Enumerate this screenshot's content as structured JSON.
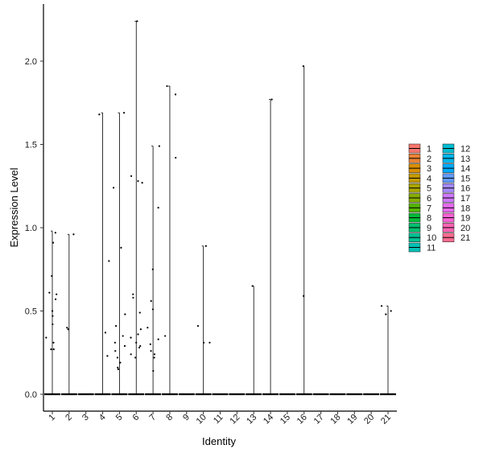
{
  "chart_data": {
    "type": "violin",
    "xlabel": "Identity",
    "ylabel": "Expression Level",
    "categories": [
      "1",
      "2",
      "3",
      "4",
      "5",
      "6",
      "7",
      "8",
      "9",
      "10",
      "11",
      "12",
      "13",
      "14",
      "15",
      "16",
      "17",
      "18",
      "19",
      "20",
      "21"
    ],
    "ylim": [
      -0.1,
      2.3
    ],
    "yticks": [
      0.0,
      0.5,
      1.0,
      1.5,
      2.0
    ],
    "ytick_labels": [
      "0.0",
      "0.5",
      "1.0",
      "1.5",
      "2.0"
    ],
    "grid": false,
    "legend_position": "right",
    "legend_columns": 2,
    "colors": [
      "#F8766D",
      "#EB8335",
      "#DA8F00",
      "#C49A00",
      "#A9A400",
      "#86AC00",
      "#53B400",
      "#00BA38",
      "#00BE6D",
      "#00C094",
      "#00C0B5",
      "#00BDD2",
      "#00B6EB",
      "#00ABFD",
      "#619CFF",
      "#A58AFF",
      "#CF78FF",
      "#EA6AF1",
      "#FA62D5",
      "#FF63B4",
      "#FF6C91"
    ],
    "max_values": [
      0.98,
      0.96,
      0.0,
      1.69,
      1.69,
      2.24,
      1.49,
      1.85,
      0.0,
      0.89,
      0.0,
      0.0,
      0.65,
      1.77,
      0.0,
      1.97,
      0.0,
      0.0,
      0.0,
      0.0,
      0.53
    ],
    "points": [
      {
        "group": "1",
        "y": 0.97
      },
      {
        "group": "1",
        "y": 0.91
      },
      {
        "group": "1",
        "y": 0.71
      },
      {
        "group": "1",
        "y": 0.61
      },
      {
        "group": "1",
        "y": 0.6
      },
      {
        "group": "1",
        "y": 0.57
      },
      {
        "group": "1",
        "y": 0.5
      },
      {
        "group": "1",
        "y": 0.47
      },
      {
        "group": "1",
        "y": 0.42
      },
      {
        "group": "1",
        "y": 0.34
      },
      {
        "group": "1",
        "y": 0.31
      },
      {
        "group": "1",
        "y": 0.27
      },
      {
        "group": "1",
        "y": 0.27
      },
      {
        "group": "2",
        "y": 0.96
      },
      {
        "group": "2",
        "y": 0.4
      },
      {
        "group": "2",
        "y": 0.39
      },
      {
        "group": "4",
        "y": 1.68
      },
      {
        "group": "4",
        "y": 0.8
      },
      {
        "group": "4",
        "y": 0.37
      },
      {
        "group": "4",
        "y": 0.23
      },
      {
        "group": "5",
        "y": 1.69
      },
      {
        "group": "5",
        "y": 1.24
      },
      {
        "group": "5",
        "y": 0.88
      },
      {
        "group": "5",
        "y": 0.48
      },
      {
        "group": "5",
        "y": 0.41
      },
      {
        "group": "5",
        "y": 0.35
      },
      {
        "group": "5",
        "y": 0.31
      },
      {
        "group": "5",
        "y": 0.29
      },
      {
        "group": "5",
        "y": 0.26
      },
      {
        "group": "5",
        "y": 0.22
      },
      {
        "group": "5",
        "y": 0.19
      },
      {
        "group": "5",
        "y": 0.16
      },
      {
        "group": "5",
        "y": 0.15
      },
      {
        "group": "6",
        "y": 2.24
      },
      {
        "group": "6",
        "y": 1.31
      },
      {
        "group": "6",
        "y": 1.28
      },
      {
        "group": "6",
        "y": 1.27
      },
      {
        "group": "6",
        "y": 0.6
      },
      {
        "group": "6",
        "y": 0.58
      },
      {
        "group": "6",
        "y": 0.49
      },
      {
        "group": "6",
        "y": 0.39
      },
      {
        "group": "6",
        "y": 0.36
      },
      {
        "group": "6",
        "y": 0.34
      },
      {
        "group": "6",
        "y": 0.31
      },
      {
        "group": "6",
        "y": 0.29
      },
      {
        "group": "6",
        "y": 0.28
      },
      {
        "group": "6",
        "y": 0.24
      },
      {
        "group": "6",
        "y": 0.22
      },
      {
        "group": "7",
        "y": 1.49
      },
      {
        "group": "7",
        "y": 1.12
      },
      {
        "group": "7",
        "y": 0.75
      },
      {
        "group": "7",
        "y": 0.56
      },
      {
        "group": "7",
        "y": 0.51
      },
      {
        "group": "7",
        "y": 0.4
      },
      {
        "group": "7",
        "y": 0.33
      },
      {
        "group": "7",
        "y": 0.3
      },
      {
        "group": "7",
        "y": 0.26
      },
      {
        "group": "7",
        "y": 0.24
      },
      {
        "group": "7",
        "y": 0.22
      },
      {
        "group": "7",
        "y": 0.14
      },
      {
        "group": "8",
        "y": 1.85
      },
      {
        "group": "8",
        "y": 1.8
      },
      {
        "group": "8",
        "y": 1.42
      },
      {
        "group": "8",
        "y": 0.35
      },
      {
        "group": "10",
        "y": 0.89
      },
      {
        "group": "10",
        "y": 0.41
      },
      {
        "group": "10",
        "y": 0.31
      },
      {
        "group": "10",
        "y": 0.31
      },
      {
        "group": "13",
        "y": 0.65
      },
      {
        "group": "14",
        "y": 1.77
      },
      {
        "group": "16",
        "y": 1.97
      },
      {
        "group": "16",
        "y": 0.59
      },
      {
        "group": "21",
        "y": 0.53
      },
      {
        "group": "21",
        "y": 0.5
      },
      {
        "group": "21",
        "y": 0.48
      }
    ]
  }
}
